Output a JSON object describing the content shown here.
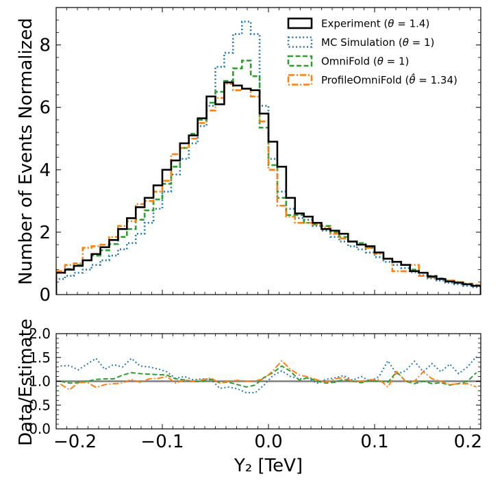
{
  "chart_data": [
    {
      "type": "step",
      "panel": "main",
      "ylabel": "Number of Events Normalized",
      "xlim": [
        -0.2,
        0.2
      ],
      "ylim": [
        0,
        9.2
      ],
      "yticks": [
        0,
        2,
        4,
        6,
        8
      ],
      "ytick_labels": [
        "0",
        "2",
        "4",
        "6",
        "8"
      ],
      "bins": 48,
      "bin_width": 0.008333,
      "bin_start": -0.2,
      "legend_position": "upper-right",
      "series": [
        {
          "name": "Experiment ($\\theta = 1.4$)",
          "legend": [
            "Experiment (",
            "θ",
            " = 1.4)"
          ],
          "color": "#000000",
          "style": "solid",
          "values": [
            0.7,
            0.8,
            0.92,
            1.1,
            1.3,
            1.52,
            1.75,
            2.1,
            2.45,
            2.8,
            3.1,
            3.5,
            4.0,
            4.3,
            4.85,
            5.1,
            5.65,
            6.35,
            6.1,
            6.8,
            6.7,
            6.6,
            6.55,
            5.8,
            4.9,
            4.1,
            3.1,
            2.6,
            2.5,
            2.3,
            2.1,
            2.05,
            1.95,
            1.7,
            1.6,
            1.55,
            1.35,
            1.15,
            1.05,
            0.95,
            0.75,
            0.7,
            0.58,
            0.5,
            0.42,
            0.38,
            0.33,
            0.28
          ]
        },
        {
          "name": "MC Simulation ($\\theta = 1$)",
          "legend": [
            "MC Simulation (",
            "θ",
            " = 1)"
          ],
          "color": "#1f77b4",
          "style": "dotted",
          "values": [
            0.5,
            0.6,
            0.7,
            0.8,
            0.95,
            1.1,
            1.25,
            1.45,
            1.65,
            1.95,
            2.3,
            2.75,
            3.3,
            3.85,
            4.35,
            4.85,
            5.4,
            6.05,
            7.3,
            7.75,
            8.35,
            8.75,
            8.35,
            6.05,
            4.35,
            3.3,
            2.75,
            2.45,
            2.4,
            2.2,
            2.05,
            1.85,
            1.7,
            1.55,
            1.45,
            1.35,
            1.2,
            1.05,
            0.95,
            0.85,
            0.72,
            0.62,
            0.52,
            0.45,
            0.38,
            0.33,
            0.28,
            0.24
          ]
        },
        {
          "name": "OmniFold ($\\theta = 1$)",
          "legend": [
            "OmniFold (",
            "θ",
            " = 1)"
          ],
          "color": "#2ca02c",
          "style": "dashed",
          "values": [
            0.7,
            0.82,
            0.95,
            1.1,
            1.25,
            1.42,
            1.62,
            1.85,
            2.1,
            2.4,
            2.7,
            3.05,
            3.55,
            4.1,
            4.7,
            5.15,
            5.6,
            6.15,
            6.5,
            6.85,
            7.25,
            7.5,
            7.0,
            5.35,
            4.15,
            3.1,
            2.55,
            2.55,
            2.3,
            2.25,
            2.2,
            2.0,
            1.85,
            1.7,
            1.65,
            1.5,
            1.35,
            1.15,
            1.05,
            0.95,
            0.8,
            0.7,
            0.6,
            0.52,
            0.45,
            0.4,
            0.35,
            0.3
          ]
        },
        {
          "name": "ProfileOmniFold ($\\hat{\\theta} = 1.34$)",
          "legend": [
            "ProfileOmniFold (",
            "θ̂",
            " = 1.34)"
          ],
          "color": "#ff7f0e",
          "style": "dashdot",
          "values": [
            0.75,
            0.95,
            1.0,
            1.5,
            1.55,
            1.6,
            1.85,
            2.2,
            2.35,
            2.9,
            3.0,
            3.3,
            3.65,
            4.5,
            4.7,
            5.0,
            5.5,
            5.9,
            6.3,
            6.75,
            6.55,
            6.6,
            6.35,
            5.55,
            4.0,
            2.85,
            2.5,
            2.3,
            2.3,
            2.25,
            2.15,
            1.95,
            1.8,
            1.7,
            1.6,
            1.5,
            1.3,
            1.15,
            0.75,
            0.75,
            0.95,
            0.6,
            0.55,
            0.5,
            0.45,
            0.4,
            0.35,
            0.32
          ]
        }
      ]
    },
    {
      "type": "line",
      "panel": "ratio",
      "xlabel": "Y₂ [TeV]",
      "ylabel": "Data/Estimate",
      "xlim": [
        -0.2,
        0.2
      ],
      "ylim": [
        0,
        2
      ],
      "xticks": [
        -0.2,
        -0.1,
        0.0,
        0.1,
        0.2
      ],
      "xtick_labels": [
        "−0.2",
        "−0.1",
        "0.0",
        "0.1",
        "0.2"
      ],
      "yticks": [
        0,
        0.5,
        1,
        1.5,
        2
      ],
      "ytick_labels": [
        "0.0",
        "0.5",
        "1.0",
        "1.5",
        "2.0"
      ],
      "reference_line": 1.0,
      "reference_color": "#7f7f7f",
      "series": [
        {
          "name": "MC Simulation",
          "color": "#1f77b4",
          "style": "dotted",
          "values": [
            1.32,
            1.33,
            1.24,
            1.36,
            1.48,
            1.25,
            1.35,
            1.3,
            1.48,
            1.32,
            1.3,
            1.26,
            1.2,
            1.06,
            1.1,
            1.03,
            1.05,
            1.04,
            0.85,
            0.88,
            0.84,
            0.76,
            0.76,
            0.92,
            1.12,
            1.22,
            1.1,
            1.05,
            1.06,
            0.96,
            1.04,
            1.07,
            1.12,
            1.02,
            1.1,
            1.0,
            1.1,
            1.43,
            1.15,
            1.22,
            1.42,
            1.2,
            1.37,
            1.2,
            1.36,
            1.16,
            1.3,
            1.52
          ]
        },
        {
          "name": "OmniFold",
          "color": "#2ca02c",
          "style": "dashed",
          "values": [
            1.0,
            0.96,
            0.97,
            1.0,
            1.04,
            1.05,
            1.05,
            1.13,
            1.18,
            1.16,
            1.15,
            1.14,
            1.13,
            1.05,
            1.03,
            0.99,
            1.0,
            1.04,
            0.97,
            0.98,
            0.93,
            0.88,
            0.92,
            1.08,
            1.18,
            1.32,
            1.21,
            1.02,
            1.08,
            1.0,
            0.96,
            0.98,
            1.04,
            1.0,
            0.97,
            1.02,
            1.0,
            0.98,
            1.2,
            1.0,
            0.95,
            1.0,
            0.95,
            0.97,
            0.92,
            0.95,
            1.0,
            1.18
          ]
        },
        {
          "name": "ProfileOmniFold",
          "color": "#ff7f0e",
          "style": "dashdot",
          "values": [
            0.94,
            0.82,
            0.97,
            0.98,
            0.87,
            0.93,
            0.95,
            0.96,
            1.04,
            0.98,
            1.05,
            1.06,
            1.1,
            0.96,
            1.03,
            1.0,
            1.03,
            1.07,
            0.96,
            1.0,
            1.02,
            1.0,
            1.01,
            1.05,
            1.22,
            1.43,
            1.25,
            1.13,
            1.09,
            1.03,
            0.98,
            1.05,
            1.08,
            1.0,
            1.0,
            1.03,
            1.04,
            0.88,
            1.2,
            1.0,
            1.0,
            1.2,
            1.05,
            1.0,
            0.93,
            0.95,
            0.95,
            0.88
          ]
        }
      ]
    }
  ]
}
